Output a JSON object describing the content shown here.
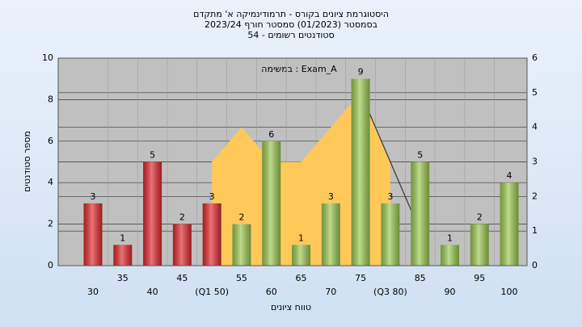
{
  "chart_data": {
    "type": "bar",
    "title": [
      "היסטוגרמת ציונים בקורס - תרמודינמיקה א' מתקדם",
      "בסמסטר (01/2023) סמסטר חורף 2023/24",
      "סטודנטים רשומים - 54"
    ],
    "annotation": "במשימה : Exam_A",
    "x_label": "טווח ציונים",
    "y_label": "מספר סטודנטים",
    "categories": [
      "30",
      "35",
      "40",
      "45",
      "(Q1 50)",
      "55",
      "60",
      "65",
      "70",
      "75",
      "(Q3 80)",
      "85",
      "90",
      "95",
      "100"
    ],
    "values": [
      3,
      1,
      5,
      2,
      3,
      2,
      6,
      1,
      3,
      9,
      3,
      5,
      1,
      2,
      4
    ],
    "colors": [
      "#e0282c",
      "#e0282c",
      "#e0282c",
      "#e0282c",
      "#e0282c",
      "#9bc850",
      "#9bc850",
      "#9bc850",
      "#9bc850",
      "#9bc850",
      "#9bc850",
      "#9bc850",
      "#9bc850",
      "#9bc850",
      "#9bc850"
    ],
    "series": [
      {
        "type": "area",
        "axis": "y2",
        "color": "#ffc95a",
        "values": [
          null,
          null,
          null,
          null,
          3,
          4,
          3,
          3,
          4,
          5,
          3,
          null,
          null,
          null,
          null
        ]
      },
      {
        "type": "line",
        "axis": "y2",
        "color": "#333333",
        "values": [
          null,
          null,
          null,
          null,
          null,
          null,
          null,
          null,
          null,
          5,
          3,
          1,
          null,
          null,
          null
        ]
      }
    ],
    "ylim": [
      0,
      10
    ],
    "yticks": [
      0,
      2,
      4,
      6,
      8,
      10
    ],
    "y2lim": [
      0,
      6
    ],
    "y2ticks": [
      0,
      1,
      2,
      3,
      4,
      5,
      6
    ],
    "grid": true
  }
}
